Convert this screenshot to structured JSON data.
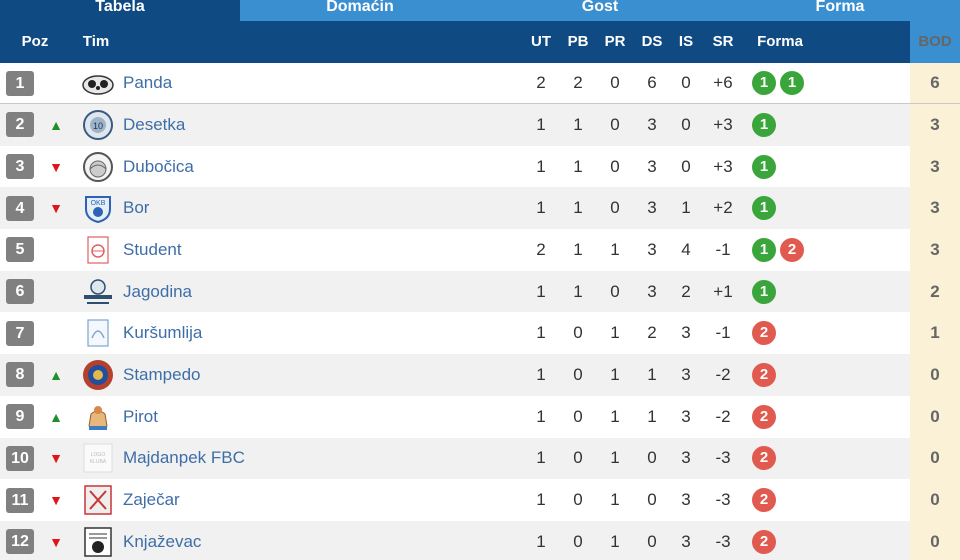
{
  "tabs": [
    {
      "label": "Tabela",
      "active": true
    },
    {
      "label": "Domaćin",
      "active": false
    },
    {
      "label": "Gost",
      "active": false
    },
    {
      "label": "Forma",
      "active": false
    }
  ],
  "header": {
    "poz": "Poz",
    "tim": "Tim",
    "ut": "UT",
    "pb": "PB",
    "pr": "PR",
    "ds": "DS",
    "is": "IS",
    "sr": "SR",
    "forma": "Forma",
    "bod": "BOD"
  },
  "rows": [
    {
      "pos": "1",
      "trend": "",
      "team": "Panda",
      "ut": "2",
      "pb": "2",
      "pr": "0",
      "ds": "6",
      "is": "0",
      "sr": "+6",
      "forma": [
        "1",
        "1"
      ],
      "bod": "6"
    },
    {
      "pos": "2",
      "trend": "▲",
      "team": "Desetka",
      "ut": "1",
      "pb": "1",
      "pr": "0",
      "ds": "3",
      "is": "0",
      "sr": "+3",
      "forma": [
        "1"
      ],
      "bod": "3"
    },
    {
      "pos": "3",
      "trend": "▼",
      "team": "Dubočica",
      "ut": "1",
      "pb": "1",
      "pr": "0",
      "ds": "3",
      "is": "0",
      "sr": "+3",
      "forma": [
        "1"
      ],
      "bod": "3"
    },
    {
      "pos": "4",
      "trend": "▼",
      "team": "Bor",
      "ut": "1",
      "pb": "1",
      "pr": "0",
      "ds": "3",
      "is": "1",
      "sr": "+2",
      "forma": [
        "1"
      ],
      "bod": "3"
    },
    {
      "pos": "5",
      "trend": "",
      "team": "Student",
      "ut": "2",
      "pb": "1",
      "pr": "1",
      "ds": "3",
      "is": "4",
      "sr": "-1",
      "forma": [
        "1",
        "2"
      ],
      "bod": "3"
    },
    {
      "pos": "6",
      "trend": "",
      "team": "Jagodina",
      "ut": "1",
      "pb": "1",
      "pr": "0",
      "ds": "3",
      "is": "2",
      "sr": "+1",
      "forma": [
        "1"
      ],
      "bod": "2"
    },
    {
      "pos": "7",
      "trend": "",
      "team": "Kuršumlija",
      "ut": "1",
      "pb": "0",
      "pr": "1",
      "ds": "2",
      "is": "3",
      "sr": "-1",
      "forma": [
        "2"
      ],
      "bod": "1"
    },
    {
      "pos": "8",
      "trend": "▲",
      "team": "Stampedo",
      "ut": "1",
      "pb": "0",
      "pr": "1",
      "ds": "1",
      "is": "3",
      "sr": "-2",
      "forma": [
        "2"
      ],
      "bod": "0"
    },
    {
      "pos": "9",
      "trend": "▲",
      "team": "Pirot",
      "ut": "1",
      "pb": "0",
      "pr": "1",
      "ds": "1",
      "is": "3",
      "sr": "-2",
      "forma": [
        "2"
      ],
      "bod": "0"
    },
    {
      "pos": "10",
      "trend": "▼",
      "team": "Majdanpek FBC",
      "ut": "1",
      "pb": "0",
      "pr": "1",
      "ds": "0",
      "is": "3",
      "sr": "-3",
      "forma": [
        "2"
      ],
      "bod": "0"
    },
    {
      "pos": "11",
      "trend": "▼",
      "team": "Zaječar",
      "ut": "1",
      "pb": "0",
      "pr": "1",
      "ds": "0",
      "is": "3",
      "sr": "-3",
      "forma": [
        "2"
      ],
      "bod": "0"
    },
    {
      "pos": "12",
      "trend": "▼",
      "team": "Knjaževac",
      "ut": "1",
      "pb": "0",
      "pr": "1",
      "ds": "0",
      "is": "3",
      "sr": "-3",
      "forma": [
        "2"
      ],
      "bod": "0"
    }
  ],
  "colors": {
    "header_bg": "#0f4a82",
    "tab_bg": "#3a8fd0",
    "win": "#3aa53a",
    "loss": "#e05a50",
    "trend_up": "#1f8f2a",
    "trend_down": "#e0151b",
    "bod_bg": "#faf1d6",
    "team_link": "#3e6ea7"
  }
}
